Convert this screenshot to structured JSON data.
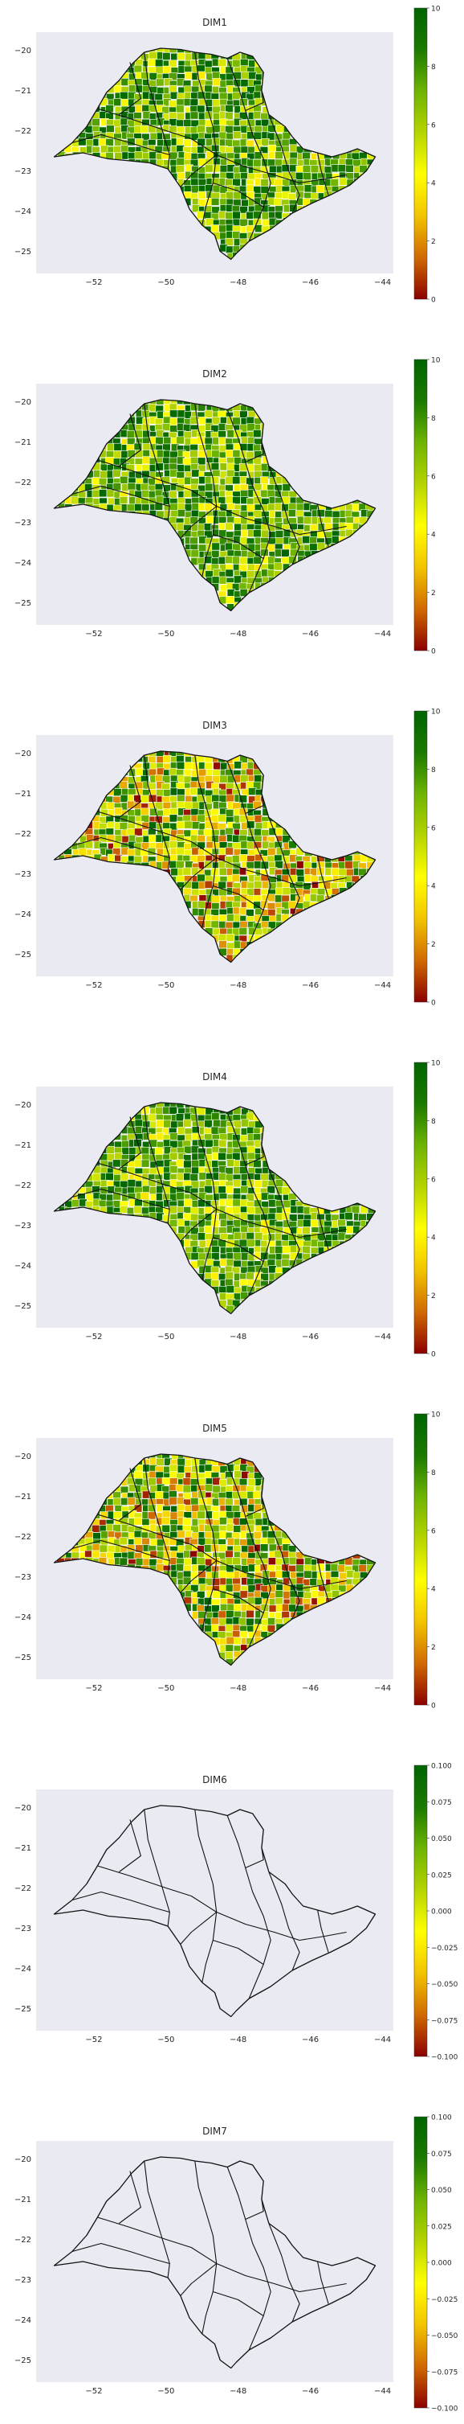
{
  "figure": {
    "panels": [
      {
        "title": "DIM1",
        "colorbar_ticks": [
          "0",
          "2",
          "4",
          "6",
          "8",
          "10"
        ],
        "fill": "data"
      },
      {
        "title": "DIM2",
        "colorbar_ticks": [
          "0",
          "2",
          "4",
          "6",
          "8",
          "10"
        ],
        "fill": "data"
      },
      {
        "title": "DIM3",
        "colorbar_ticks": [
          "0",
          "2",
          "4",
          "6",
          "8",
          "10"
        ],
        "fill": "data"
      },
      {
        "title": "DIM4",
        "colorbar_ticks": [
          "0",
          "2",
          "4",
          "6",
          "8",
          "10"
        ],
        "fill": "data"
      },
      {
        "title": "DIM5",
        "colorbar_ticks": [
          "0",
          "2",
          "4",
          "6",
          "8",
          "10"
        ],
        "fill": "data"
      },
      {
        "title": "DIM6",
        "colorbar_ticks": [
          "−0.100",
          "−0.075",
          "−0.050",
          "−0.025",
          "0.000",
          "0.025",
          "0.050",
          "0.075",
          "0.100"
        ],
        "fill": "none"
      },
      {
        "title": "DIM7",
        "colorbar_ticks": [
          "−0.100",
          "−0.075",
          "−0.050",
          "−0.025",
          "0.000",
          "0.025",
          "0.050",
          "0.075",
          "0.100"
        ],
        "fill": "none"
      }
    ],
    "x_ticks": [
      "−52",
      "−50",
      "−48",
      "−46",
      "−44"
    ],
    "y_ticks": [
      "−20",
      "−21",
      "−22",
      "−23",
      "−24",
      "−25"
    ],
    "colormap": [
      "#8b0000",
      "#d06a00",
      "#f2c400",
      "#ffff00",
      "#b6d400",
      "#6fb400",
      "#1b7a00",
      "#006400"
    ],
    "colors": {
      "axes_bg": "#eaeaf2",
      "outline": "#111111",
      "municipal_line": "#ffffff"
    }
  }
}
